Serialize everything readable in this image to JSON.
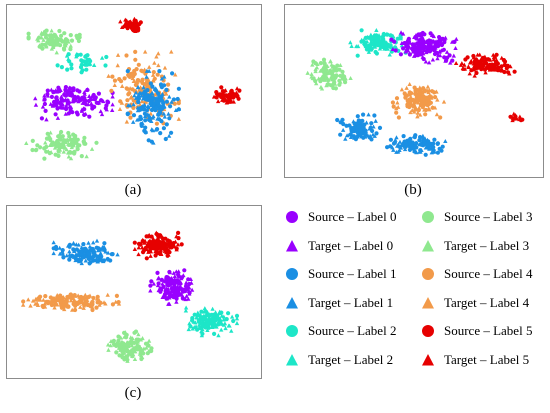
{
  "captions": {
    "a": "(a)",
    "b": "(b)",
    "c": "(c)"
  },
  "legend": [
    {
      "text": "Source – Label 0",
      "marker": "circle",
      "color": "#9900ff"
    },
    {
      "text": "Source – Label 3",
      "marker": "circle",
      "color": "#8fe88f"
    },
    {
      "text": "Target – Label 0",
      "marker": "triangle",
      "color": "#9900ff"
    },
    {
      "text": "Target – Label 3",
      "marker": "triangle",
      "color": "#8fe88f"
    },
    {
      "text": "Source – Label 1",
      "marker": "circle",
      "color": "#1a8fe3"
    },
    {
      "text": "Source – Label 4",
      "marker": "circle",
      "color": "#f29a4a"
    },
    {
      "text": "Target – Label 1",
      "marker": "triangle",
      "color": "#1a8fe3"
    },
    {
      "text": "Target – Label 4",
      "marker": "triangle",
      "color": "#f29a4a"
    },
    {
      "text": "Source – Label 2",
      "marker": "circle",
      "color": "#1de6c8"
    },
    {
      "text": "Source – Label 5",
      "marker": "circle",
      "color": "#e60000"
    },
    {
      "text": "Target – Label 2",
      "marker": "triangle",
      "color": "#1de6c8"
    },
    {
      "text": "Target – Label 5",
      "marker": "triangle",
      "color": "#e60000"
    }
  ],
  "chart_data": [
    {
      "type": "scatter",
      "panel": "(a)",
      "xlim": [
        0,
        100
      ],
      "ylim": [
        0,
        100
      ],
      "clusters": [
        {
          "label": 3,
          "center": [
            17,
            81
          ],
          "spread": [
            8,
            6
          ],
          "n": 90,
          "color": "#8fe88f"
        },
        {
          "label": 5,
          "center": [
            49,
            91
          ],
          "spread": [
            4,
            4
          ],
          "n": 45,
          "color": "#e60000"
        },
        {
          "label": 2,
          "center": [
            28,
            68
          ],
          "spread": [
            8,
            5
          ],
          "n": 40,
          "color": "#1de6c8"
        },
        {
          "label": 0,
          "center": [
            24,
            44
          ],
          "spread": [
            13,
            9
          ],
          "n": 150,
          "color": "#9900ff"
        },
        {
          "label": 3,
          "center": [
            20,
            17
          ],
          "spread": [
            11,
            7
          ],
          "n": 120,
          "color": "#8fe88f"
        },
        {
          "label": 4,
          "center": [
            54,
            52
          ],
          "spread": [
            11,
            17
          ],
          "n": 170,
          "color": "#f29a4a"
        },
        {
          "label": 1,
          "center": [
            58,
            40
          ],
          "spread": [
            8,
            17
          ],
          "n": 170,
          "color": "#1a8fe3"
        },
        {
          "label": 5,
          "center": [
            89,
            47
          ],
          "spread": [
            4.5,
            4
          ],
          "n": 65,
          "color": "#e60000"
        }
      ]
    },
    {
      "type": "scatter",
      "panel": "(b)",
      "xlim": [
        0,
        100
      ],
      "ylim": [
        0,
        100
      ],
      "clusters": [
        {
          "label": 2,
          "center": [
            36,
            80
          ],
          "spread": [
            9,
            6
          ],
          "n": 120,
          "color": "#1de6c8"
        },
        {
          "label": 0,
          "center": [
            54,
            78
          ],
          "spread": [
            10,
            8
          ],
          "n": 170,
          "color": "#9900ff"
        },
        {
          "label": 5,
          "center": [
            79,
            66
          ],
          "spread": [
            9,
            5
          ],
          "n": 120,
          "color": "#e60000"
        },
        {
          "label": 5,
          "center": [
            91,
            33
          ],
          "spread": [
            3,
            2
          ],
          "n": 15,
          "color": "#e60000"
        },
        {
          "label": 3,
          "center": [
            15,
            60
          ],
          "spread": [
            7,
            8
          ],
          "n": 100,
          "color": "#8fe88f"
        },
        {
          "label": 4,
          "center": [
            52,
            44
          ],
          "spread": [
            8,
            8
          ],
          "n": 130,
          "color": "#f29a4a"
        },
        {
          "label": 1,
          "center": [
            28,
            26
          ],
          "spread": [
            7,
            7
          ],
          "n": 100,
          "color": "#1a8fe3"
        },
        {
          "label": 1,
          "center": [
            50,
            16
          ],
          "spread": [
            10,
            5
          ],
          "n": 120,
          "color": "#1a8fe3"
        }
      ]
    },
    {
      "type": "scatter",
      "panel": "(c)",
      "xlim": [
        0,
        100
      ],
      "ylim": [
        0,
        100
      ],
      "clusters": [
        {
          "label": 5,
          "center": [
            60,
            79
          ],
          "spread": [
            8,
            6
          ],
          "n": 150,
          "color": "#e60000"
        },
        {
          "label": 0,
          "center": [
            66,
            53
          ],
          "spread": [
            7,
            8
          ],
          "n": 150,
          "color": "#9900ff"
        },
        {
          "label": 1,
          "center": [
            30,
            74
          ],
          "spread": [
            10,
            6
          ],
          "n": 140,
          "color": "#1a8fe3"
        },
        {
          "label": 4,
          "center": [
            24,
            44
          ],
          "spread": [
            15,
            4
          ],
          "n": 160,
          "color": "#f29a4a"
        },
        {
          "label": 2,
          "center": [
            82,
            32
          ],
          "spread": [
            8,
            7
          ],
          "n": 140,
          "color": "#1de6c8"
        },
        {
          "label": 3,
          "center": [
            48,
            16
          ],
          "spread": [
            7,
            7
          ],
          "n": 130,
          "color": "#8fe88f"
        }
      ]
    }
  ]
}
